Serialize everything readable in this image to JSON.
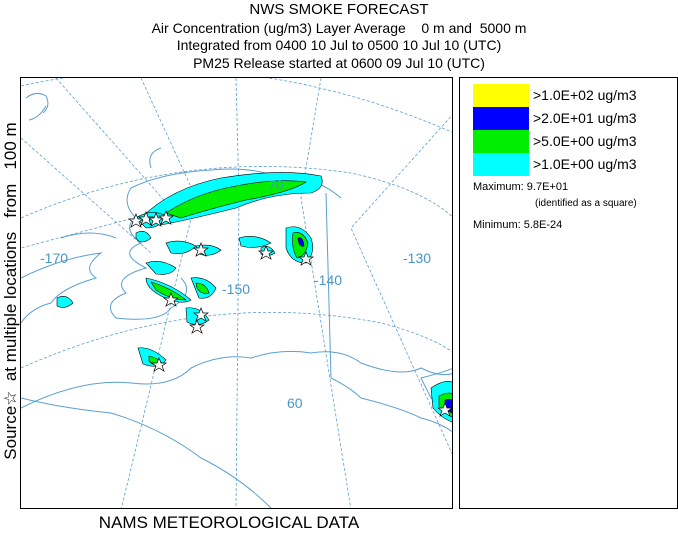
{
  "header": {
    "title": "NWS SMOKE FORECAST",
    "line1": "Air Concentration (ug/m3) Layer Average    0 m and  5000 m",
    "line2": "Integrated from 0400 10 Jul to 0500 10 Jul 10 (UTC)",
    "line3": "PM25 Release started at 0600 09 Jul 10 (UTC)"
  },
  "side_label": "Source☆  at multiple locations   from   100 m",
  "footer": "NAMS METEOROLOGICAL DATA",
  "map": {
    "grid_labels": {
      "lat_70": "70",
      "lat_60": "60",
      "lon_170": "-170",
      "lon_150": "-150",
      "lon_140": "-140",
      "lon_130": "-130"
    },
    "colors": {
      "land_outline": "#5aa0d0",
      "graticule": "#5aa0d0",
      "contour_line": "#000000"
    }
  },
  "legend": {
    "items": [
      {
        "label": ">1.0E+02 ug/m3",
        "color": "#ffff00"
      },
      {
        "label": ">2.0E+01 ug/m3",
        "color": "#0000ff"
      },
      {
        "label": ">5.0E+00 ug/m3",
        "color": "#00ee00"
      },
      {
        "label": ">1.0E+00 ug/m3",
        "color": "#00ffff"
      }
    ],
    "maximum": "Maximum: 9.7E+01",
    "maximum_note": "(identified as a square)",
    "minimum": "Minimum: 5.8E-24"
  }
}
